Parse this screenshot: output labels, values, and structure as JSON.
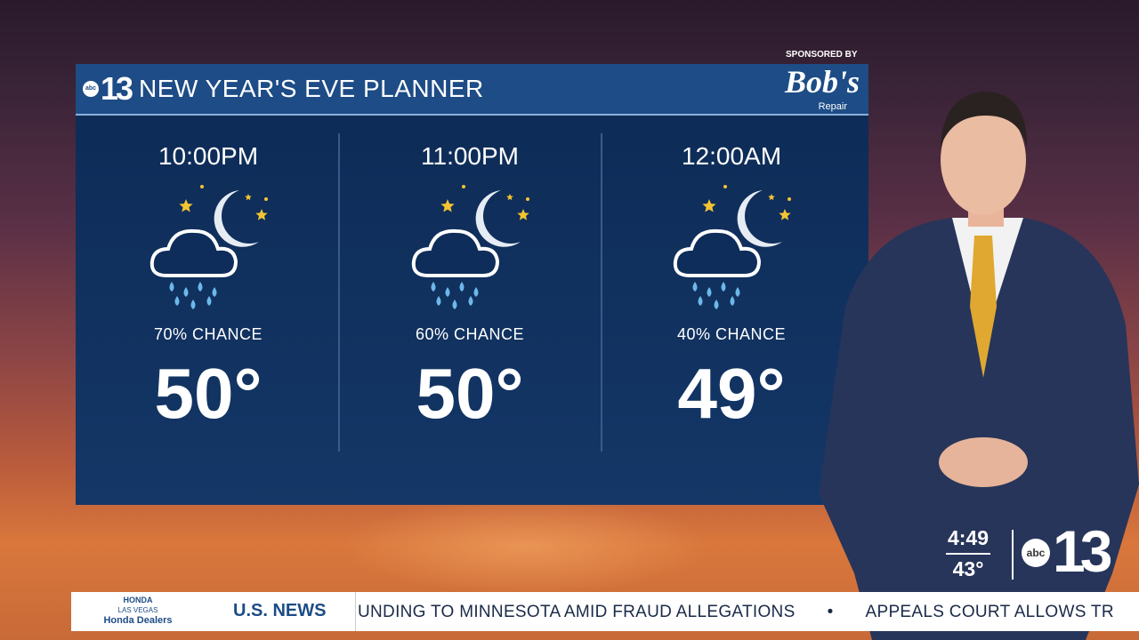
{
  "planner": {
    "title": "NEW YEAR'S EVE PLANNER",
    "station_logo": "abc 13",
    "sponsor_label": "SPONSORED BY",
    "sponsor_logo": {
      "name": "Bob's",
      "sub": "Repair"
    },
    "columns": [
      {
        "time": "10:00PM",
        "icon": "night-rain-icon",
        "chance": "70% CHANCE",
        "temp": "50°"
      },
      {
        "time": "11:00PM",
        "icon": "night-rain-icon",
        "chance": "60% CHANCE",
        "temp": "50°"
      },
      {
        "time": "12:00AM",
        "icon": "night-rain-icon",
        "chance": "40% CHANCE",
        "temp": "49°"
      }
    ]
  },
  "bug": {
    "time": "4:49",
    "temp": "43°",
    "logo": "abc 13"
  },
  "ticker": {
    "sponsor": {
      "brand": "HONDA",
      "city": "LAS VEGAS",
      "name": "Honda Dealers"
    },
    "category": "U.S. NEWS",
    "text": "UNDING TO MINNESOTA AMID FRAUD ALLEGATIONS",
    "bullet": "•",
    "next": "APPEALS COURT ALLOWS TR"
  },
  "colors": {
    "header": "#1d4c86",
    "panel": "#0f2d5a",
    "star": "#f5c431"
  }
}
